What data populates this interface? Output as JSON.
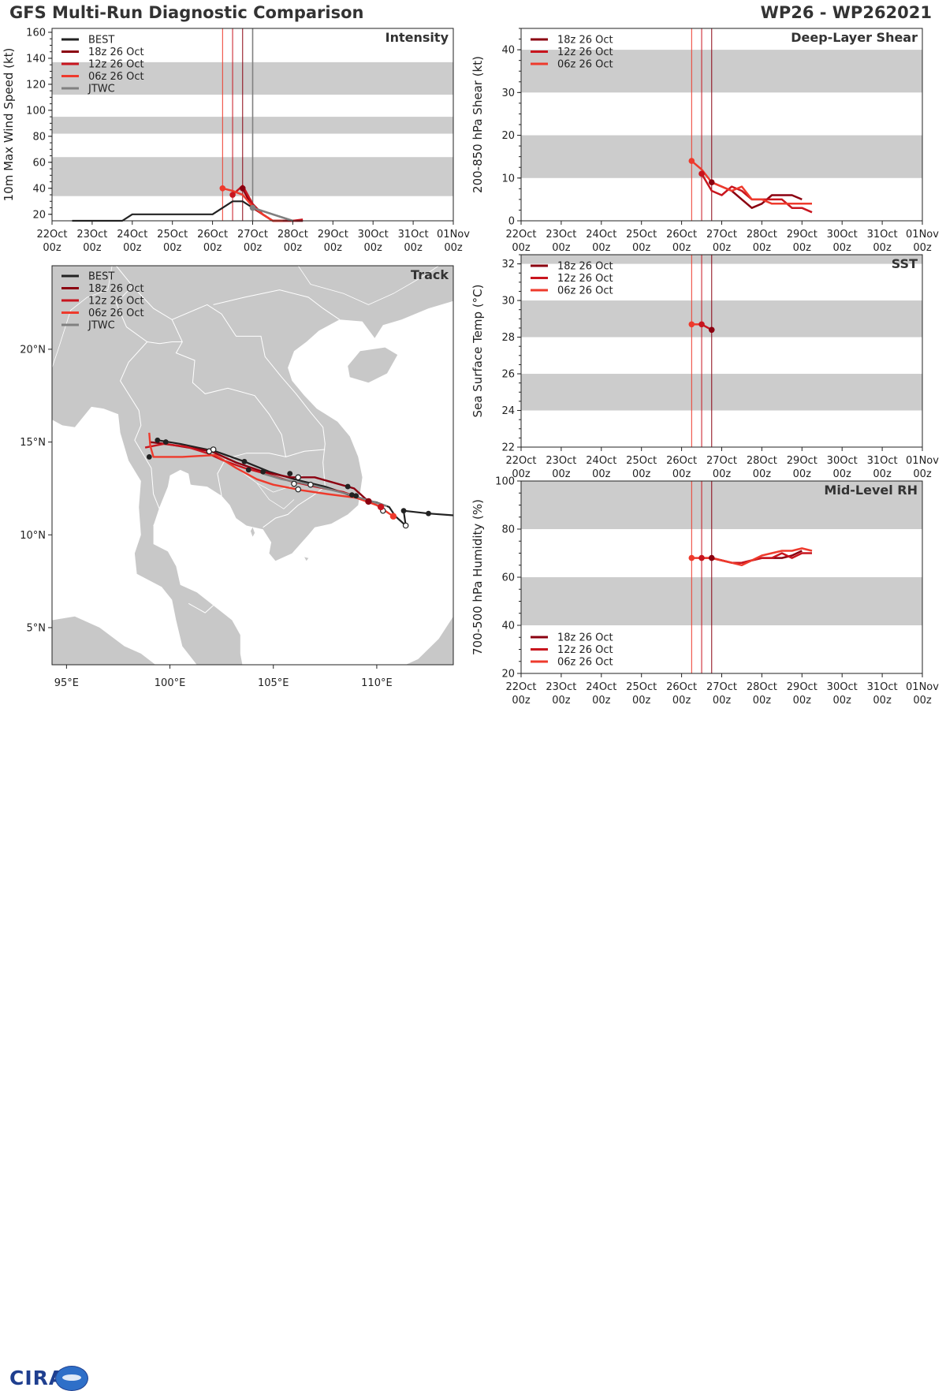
{
  "header": {
    "left_title": "GFS Multi-Run Diagnostic Comparison",
    "right_title": "WP26 - WP262021"
  },
  "logo": {
    "text": "CIRA"
  },
  "colors": {
    "best": "#222222",
    "run_18z": "#8b0010",
    "run_12z": "#c8151e",
    "run_06z": "#ee3a2c",
    "jtwc": "#808080",
    "band": "#cccccc",
    "land": "#c8c8c8",
    "border": "#ffffff"
  },
  "time_axis": {
    "days": [
      "22Oct",
      "23Oct",
      "24Oct",
      "25Oct",
      "26Oct",
      "27Oct",
      "28Oct",
      "29Oct",
      "30Oct",
      "31Oct",
      "01Nov"
    ],
    "hour_label": "00z"
  },
  "init_times": [
    {
      "name": "06z 26 Oct",
      "t": 4.25
    },
    {
      "name": "12z 26 Oct",
      "t": 4.5
    },
    {
      "name": "18z 26 Oct",
      "t": 4.75
    }
  ],
  "chart_data": [
    {
      "id": "intensity",
      "type": "line",
      "title": "Intensity",
      "ylabel": "10m Max Wind Speed (kt)",
      "xlabel": "",
      "ylim": [
        15,
        163
      ],
      "yticks": [
        20,
        40,
        60,
        80,
        100,
        120,
        140,
        160
      ],
      "bands": [
        [
          34,
          64
        ],
        [
          82,
          95
        ],
        [
          112,
          137
        ]
      ],
      "jtwc_line_t": 5.0,
      "legend": [
        "BEST",
        "18z 26 Oct",
        "12z 26 Oct",
        "06z 26 Oct",
        "JTWC"
      ],
      "series": [
        {
          "name": "BEST",
          "color_key": "best",
          "t": [
            0.5,
            1.0,
            1.5,
            1.75,
            2.0,
            2.5,
            3.0,
            3.5,
            4.0,
            4.5,
            4.75,
            5.0,
            5.5,
            6.0,
            6.25
          ],
          "values": [
            15,
            15,
            15,
            15,
            20,
            20,
            20,
            20,
            20,
            30,
            30,
            25,
            20,
            15,
            15
          ]
        },
        {
          "name": "18z 26 Oct",
          "color_key": "run_18z",
          "t": [
            4.75,
            5.0,
            5.25,
            5.5,
            5.75,
            6.0,
            6.25
          ],
          "values": [
            40,
            25,
            20,
            15,
            15,
            15,
            15
          ]
        },
        {
          "name": "12z 26 Oct",
          "color_key": "run_12z",
          "t": [
            4.5,
            4.75,
            5.0,
            5.25,
            5.5,
            5.75,
            6.0,
            6.25
          ],
          "values": [
            35,
            42,
            28,
            20,
            15,
            15,
            15,
            16
          ]
        },
        {
          "name": "06z 26 Oct",
          "color_key": "run_06z",
          "t": [
            4.25,
            4.5,
            4.75,
            5.0,
            5.25,
            5.5,
            5.75
          ],
          "values": [
            40,
            38,
            35,
            26,
            20,
            15,
            15
          ]
        },
        {
          "name": "JTWC",
          "color_key": "jtwc",
          "t": [
            5.0,
            5.5,
            6.0
          ],
          "values": [
            25,
            20,
            15
          ]
        }
      ],
      "markers": [
        {
          "name": "06z 26 Oct",
          "t": 4.25,
          "value": 40
        },
        {
          "name": "12z 26 Oct",
          "t": 4.5,
          "value": 35
        },
        {
          "name": "18z 26 Oct",
          "t": 4.75,
          "value": 40
        },
        {
          "name": "JTWC",
          "t": 5.0,
          "value": 25
        }
      ]
    },
    {
      "id": "shear",
      "type": "line",
      "title": "Deep-Layer Shear",
      "ylabel": "200-850 hPa Shear (kt)",
      "xlabel": "",
      "ylim": [
        0,
        45
      ],
      "yticks": [
        0,
        10,
        20,
        30,
        40
      ],
      "bands": [
        [
          10,
          20
        ],
        [
          30,
          40
        ]
      ],
      "legend": [
        "18z 26 Oct",
        "12z 26 Oct",
        "06z 26 Oct"
      ],
      "series": [
        {
          "name": "18z 26 Oct",
          "color_key": "run_18z",
          "t": [
            4.75,
            5.0,
            5.25,
            5.5,
            5.75,
            6.0,
            6.25,
            6.5,
            6.75,
            7.0
          ],
          "values": [
            9,
            8,
            7,
            5,
            3,
            4,
            6,
            6,
            6,
            5
          ]
        },
        {
          "name": "12z 26 Oct",
          "color_key": "run_12z",
          "t": [
            4.5,
            4.75,
            5.0,
            5.25,
            5.5,
            5.75,
            6.0,
            6.25,
            6.5,
            6.75,
            7.0,
            7.25
          ],
          "values": [
            11,
            7,
            6,
            8,
            7,
            5,
            5,
            5,
            5,
            3,
            3,
            2
          ]
        },
        {
          "name": "06z 26 Oct",
          "color_key": "run_06z",
          "t": [
            4.25,
            4.5,
            4.75,
            5.0,
            5.25,
            5.5,
            5.75,
            6.0,
            6.25,
            6.5,
            6.75,
            7.0,
            7.25
          ],
          "values": [
            14,
            12,
            9,
            8,
            7,
            8,
            5,
            5,
            4,
            4,
            4,
            4,
            4
          ]
        }
      ],
      "markers": [
        {
          "name": "06z 26 Oct",
          "t": 4.25,
          "value": 14
        },
        {
          "name": "12z 26 Oct",
          "t": 4.5,
          "value": 11
        },
        {
          "name": "18z 26 Oct",
          "t": 4.75,
          "value": 9
        }
      ]
    },
    {
      "id": "sst",
      "type": "line",
      "title": "SST",
      "ylabel": "Sea Surface Temp (°C)",
      "xlabel": "",
      "ylim": [
        22,
        32.5
      ],
      "yticks": [
        22,
        24,
        26,
        28,
        30,
        32
      ],
      "bands": [
        [
          24,
          26
        ],
        [
          28,
          30
        ],
        [
          32,
          34
        ]
      ],
      "legend": [
        "18z 26 Oct",
        "12z 26 Oct",
        "06z 26 Oct"
      ],
      "series": [
        {
          "name": "06z 26 Oct",
          "color_key": "run_06z",
          "t": [
            4.25,
            4.5
          ],
          "values": [
            28.7,
            28.7
          ]
        },
        {
          "name": "12z 26 Oct",
          "color_key": "run_12z",
          "t": [
            4.5,
            4.75
          ],
          "values": [
            28.7,
            28.4
          ]
        },
        {
          "name": "18z 26 Oct",
          "color_key": "run_18z",
          "t": [
            4.75
          ],
          "values": [
            28.4
          ]
        }
      ],
      "markers": [
        {
          "name": "06z 26 Oct",
          "t": 4.25,
          "value": 28.7
        },
        {
          "name": "12z 26 Oct",
          "t": 4.5,
          "value": 28.7
        },
        {
          "name": "18z 26 Oct",
          "t": 4.75,
          "value": 28.4
        }
      ]
    },
    {
      "id": "rh",
      "type": "line",
      "title": "Mid-Level RH",
      "ylabel": "700-500 hPa Humidity (%)",
      "xlabel": "",
      "ylim": [
        20,
        100
      ],
      "yticks": [
        20,
        40,
        60,
        80,
        100
      ],
      "bands": [
        [
          40,
          60
        ],
        [
          80,
          100
        ]
      ],
      "legend": [
        "18z 26 Oct",
        "12z 26 Oct",
        "06z 26 Oct"
      ],
      "series": [
        {
          "name": "18z 26 Oct",
          "color_key": "run_18z",
          "t": [
            4.75,
            5.0,
            5.25,
            5.5,
            5.75,
            6.0,
            6.25,
            6.5,
            6.75,
            7.0
          ],
          "values": [
            68,
            67,
            66,
            66,
            67,
            68,
            68,
            68,
            69,
            71
          ]
        },
        {
          "name": "12z 26 Oct",
          "color_key": "run_12z",
          "t": [
            4.5,
            4.75,
            5.0,
            5.25,
            5.5,
            5.75,
            6.0,
            6.25,
            6.5,
            6.75,
            7.0,
            7.25
          ],
          "values": [
            68,
            68,
            67,
            66,
            66,
            67,
            68,
            68,
            70,
            68,
            70,
            70
          ]
        },
        {
          "name": "06z 26 Oct",
          "color_key": "run_06z",
          "t": [
            4.25,
            4.5,
            4.75,
            5.0,
            5.25,
            5.5,
            5.75,
            6.0,
            6.25,
            6.5,
            6.75,
            7.0,
            7.25
          ],
          "values": [
            68,
            68,
            68,
            67,
            66,
            65,
            67,
            69,
            70,
            71,
            71,
            72,
            71
          ]
        }
      ],
      "markers": [
        {
          "name": "06z 26 Oct",
          "t": 4.25,
          "value": 68
        },
        {
          "name": "12z 26 Oct",
          "t": 4.5,
          "value": 68
        },
        {
          "name": "18z 26 Oct",
          "t": 4.75,
          "value": 68
        }
      ]
    },
    {
      "id": "track",
      "type": "line",
      "title": "Track",
      "xlabel": "",
      "ylabel": "",
      "xlim": [
        94.3,
        113.7
      ],
      "ylim": [
        3.0,
        24.5
      ],
      "xticks": [
        95,
        100,
        105,
        110
      ],
      "xtick_labels": [
        "95°E",
        "100°E",
        "105°E",
        "110°E"
      ],
      "yticks": [
        5,
        10,
        15,
        20
      ],
      "ytick_labels": [
        "5°N",
        "10°N",
        "15°N",
        "20°N"
      ],
      "legend": [
        "BEST",
        "18z 26 Oct",
        "12z 26 Oct",
        "06z 26 Oct",
        "JTWC"
      ],
      "series": [
        {
          "name": "BEST",
          "color_key": "best",
          "lon": [
            113.7,
            112.5,
            111.3,
            111.4,
            110.9,
            110.6,
            110.0,
            109.3,
            108.8,
            107.5,
            106.0,
            104.8,
            103.6,
            102.2,
            100.5,
            99.4
          ],
          "lat": [
            11.05,
            11.15,
            11.3,
            10.5,
            11.0,
            11.5,
            11.75,
            11.9,
            12.1,
            12.6,
            13.0,
            13.4,
            13.95,
            14.5,
            14.9,
            15.1
          ]
        },
        {
          "name": "18z 26 Oct",
          "color_key": "run_18z",
          "lon": [
            109.6,
            108.9,
            107.0,
            105.8,
            104.5,
            103.2,
            102.0,
            99.8,
            99.0
          ],
          "lat": [
            11.8,
            12.5,
            13.1,
            13.1,
            13.4,
            13.9,
            14.5,
            14.9,
            15.0
          ]
        },
        {
          "name": "12z 26 Oct",
          "color_key": "run_12z",
          "lon": [
            110.2,
            109.4,
            108.4,
            107.0,
            105.8,
            104.6,
            103.6,
            102.6,
            101.8,
            100.8,
            99.7,
            98.8
          ],
          "lat": [
            11.5,
            11.9,
            12.3,
            12.6,
            12.9,
            13.3,
            13.6,
            14.0,
            14.4,
            14.75,
            14.9,
            14.7
          ]
        },
        {
          "name": "06z 26 Oct",
          "color_key": "run_06z",
          "lon": [
            110.8,
            110.0,
            109.0,
            107.6,
            106.4,
            105.0,
            104.2,
            103.2,
            102.2,
            100.6,
            99.2,
            99.05,
            99.0
          ],
          "lat": [
            11.0,
            11.6,
            12.0,
            12.2,
            12.4,
            12.7,
            13.0,
            13.6,
            14.3,
            14.2,
            14.2,
            14.8,
            15.5
          ]
        },
        {
          "name": "JTWC",
          "color_key": "jtwc",
          "lon": [
            110.5,
            108.6,
            106.8,
            105.4,
            104.5
          ],
          "lat": [
            11.55,
            12.2,
            12.7,
            13.0,
            13.3
          ]
        }
      ],
      "points_filled": [
        {
          "lon": 112.5,
          "lat": 11.15
        },
        {
          "lon": 111.3,
          "lat": 11.3
        },
        {
          "lon": 108.8,
          "lat": 12.15
        },
        {
          "lon": 105.8,
          "lat": 13.3
        },
        {
          "lon": 104.5,
          "lat": 13.4
        },
        {
          "lon": 103.8,
          "lat": 13.5
        },
        {
          "lon": 103.6,
          "lat": 13.95
        },
        {
          "lon": 99.4,
          "lat": 15.1
        },
        {
          "lon": 99.8,
          "lat": 15.0
        },
        {
          "lon": 99.0,
          "lat": 14.2
        },
        {
          "lon": 108.6,
          "lat": 12.6
        },
        {
          "lon": 109.0,
          "lat": 12.1
        }
      ],
      "points_open": [
        {
          "lon": 111.4,
          "lat": 10.5
        },
        {
          "lon": 110.3,
          "lat": 11.3
        },
        {
          "lon": 106.8,
          "lat": 12.7
        },
        {
          "lon": 106.0,
          "lat": 12.75
        },
        {
          "lon": 106.2,
          "lat": 12.45
        },
        {
          "lon": 106.2,
          "lat": 13.1
        },
        {
          "lon": 101.9,
          "lat": 14.5
        },
        {
          "lon": 102.1,
          "lat": 14.6
        }
      ],
      "start_markers": [
        {
          "name": "06z 26 Oct",
          "lon": 110.8,
          "lat": 11.0
        },
        {
          "name": "12z 26 Oct",
          "lon": 110.2,
          "lat": 11.5
        },
        {
          "name": "18z 26 Oct",
          "lon": 109.6,
          "lat": 11.8
        }
      ]
    }
  ]
}
